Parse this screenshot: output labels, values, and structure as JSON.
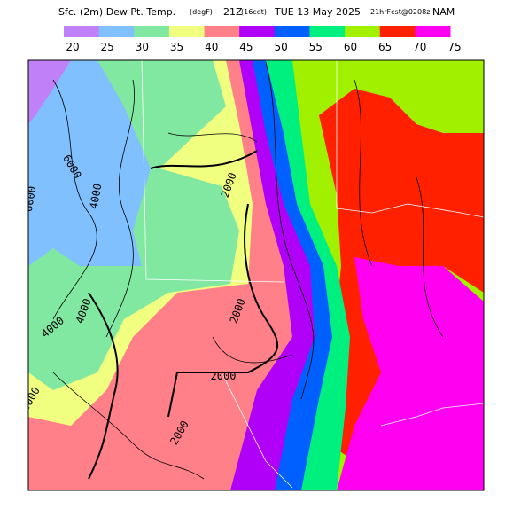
{
  "header": {
    "title": "Sfc. (2m) Dew Pt. Temp.",
    "units": "(degF)",
    "time": "21Z",
    "local_time": "(16cdt)",
    "date": "TUE 13 May 2025",
    "forecast": "21hrFcst@0208z",
    "model": "NAM"
  },
  "legend": {
    "labels": [
      "20",
      "25",
      "30",
      "35",
      "40",
      "45",
      "50",
      "55",
      "60",
      "65",
      "70",
      "75"
    ],
    "colors": [
      "#c080f8",
      "#80c0ff",
      "#80e8a0",
      "#f0ff80",
      "#ff8088",
      "#b000f8",
      "#0060ff",
      "#00f080",
      "#a0f000",
      "#ff2000",
      "#ff00f0"
    ]
  },
  "contour_labels": [
    "6000",
    "4000",
    "6000",
    "2000",
    "2000",
    "4000",
    "2000",
    "4000",
    "4000",
    "2000"
  ]
}
